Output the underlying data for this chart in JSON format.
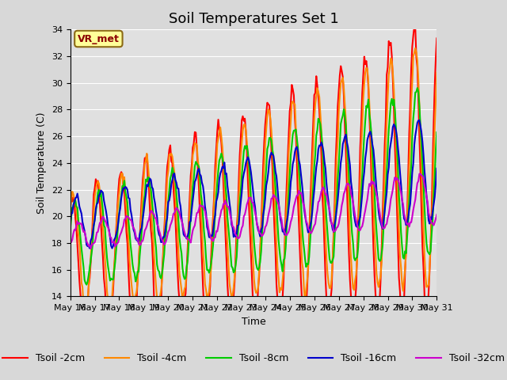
{
  "title": "Soil Temperatures Set 1",
  "xlabel": "Time",
  "ylabel": "Soil Temperature (C)",
  "ylim": [
    14,
    34
  ],
  "yticks": [
    14,
    16,
    18,
    20,
    22,
    24,
    26,
    28,
    30,
    32,
    34
  ],
  "background_color": "#d8d8d8",
  "plot_bg_color": "#e0e0e0",
  "annotation_text": "VR_met",
  "annotation_bg": "#ffff99",
  "annotation_border": "#8b6914",
  "series_colors": {
    "Tsoil -2cm": "#ff0000",
    "Tsoil -4cm": "#ff8800",
    "Tsoil -8cm": "#00cc00",
    "Tsoil -16cm": "#0000cc",
    "Tsoil -32cm": "#cc00cc"
  },
  "series_labels": [
    "Tsoil -2cm",
    "Tsoil -4cm",
    "Tsoil -8cm",
    "Tsoil -16cm",
    "Tsoil -32cm"
  ],
  "x_tick_labels": [
    "May 16",
    "May 17",
    "May 18",
    "May 19",
    "May 20",
    "May 21",
    "May 22",
    "May 23",
    "May 24",
    "May 25",
    "May 26",
    "May 27",
    "May 28",
    "May 29",
    "May 30",
    "May 31"
  ],
  "title_fontsize": 13,
  "axis_fontsize": 9,
  "tick_fontsize": 8,
  "legend_fontsize": 9,
  "line_width": 1.5
}
